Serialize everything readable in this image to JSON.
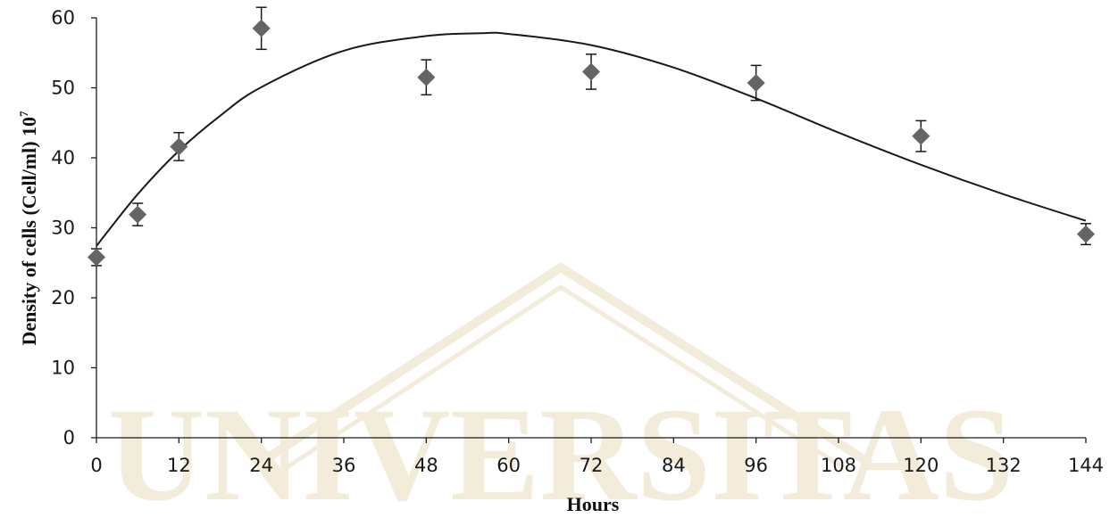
{
  "chart_data": {
    "type": "scatter",
    "xlabel": "Hours",
    "ylabel": "Density of cells (Cell/ml) 10",
    "ylabel_sup": "7",
    "xlim": [
      0,
      144
    ],
    "ylim": [
      0,
      60
    ],
    "x_ticks": [
      "0",
      "12",
      "24",
      "36",
      "48",
      "60",
      "72",
      "84",
      "96",
      "108",
      "120",
      "132",
      "144"
    ],
    "y_ticks": [
      "0",
      "10",
      "20",
      "30",
      "40",
      "50",
      "60"
    ],
    "grid": false,
    "series": [
      {
        "marker": "diamond",
        "x": [
          0,
          6,
          12,
          24,
          48,
          72,
          96,
          120,
          144
        ],
        "y": [
          25.8,
          31.9,
          41.6,
          58.5,
          51.5,
          52.3,
          50.7,
          43.1,
          29.1
        ],
        "error": [
          1.2,
          1.6,
          2.0,
          3.0,
          2.5,
          2.5,
          2.5,
          2.2,
          1.5
        ]
      }
    ],
    "trendline": {
      "type": "polynomial",
      "x": [
        0,
        6,
        12,
        18,
        24,
        36,
        48,
        56,
        60,
        72,
        84,
        96,
        108,
        120,
        132,
        144
      ],
      "y": [
        27.4,
        34.8,
        41.0,
        46.0,
        50.1,
        55.3,
        57.4,
        57.8,
        57.7,
        56.1,
        52.9,
        48.5,
        43.6,
        39.0,
        34.8,
        31.0
      ]
    },
    "colors": {
      "marker": "#656565",
      "trend": "#1a1a1a",
      "axis": "#1a1a1a",
      "watermark": "#f3ecda"
    }
  },
  "watermark": {
    "text": "UNIVERSITAS"
  }
}
